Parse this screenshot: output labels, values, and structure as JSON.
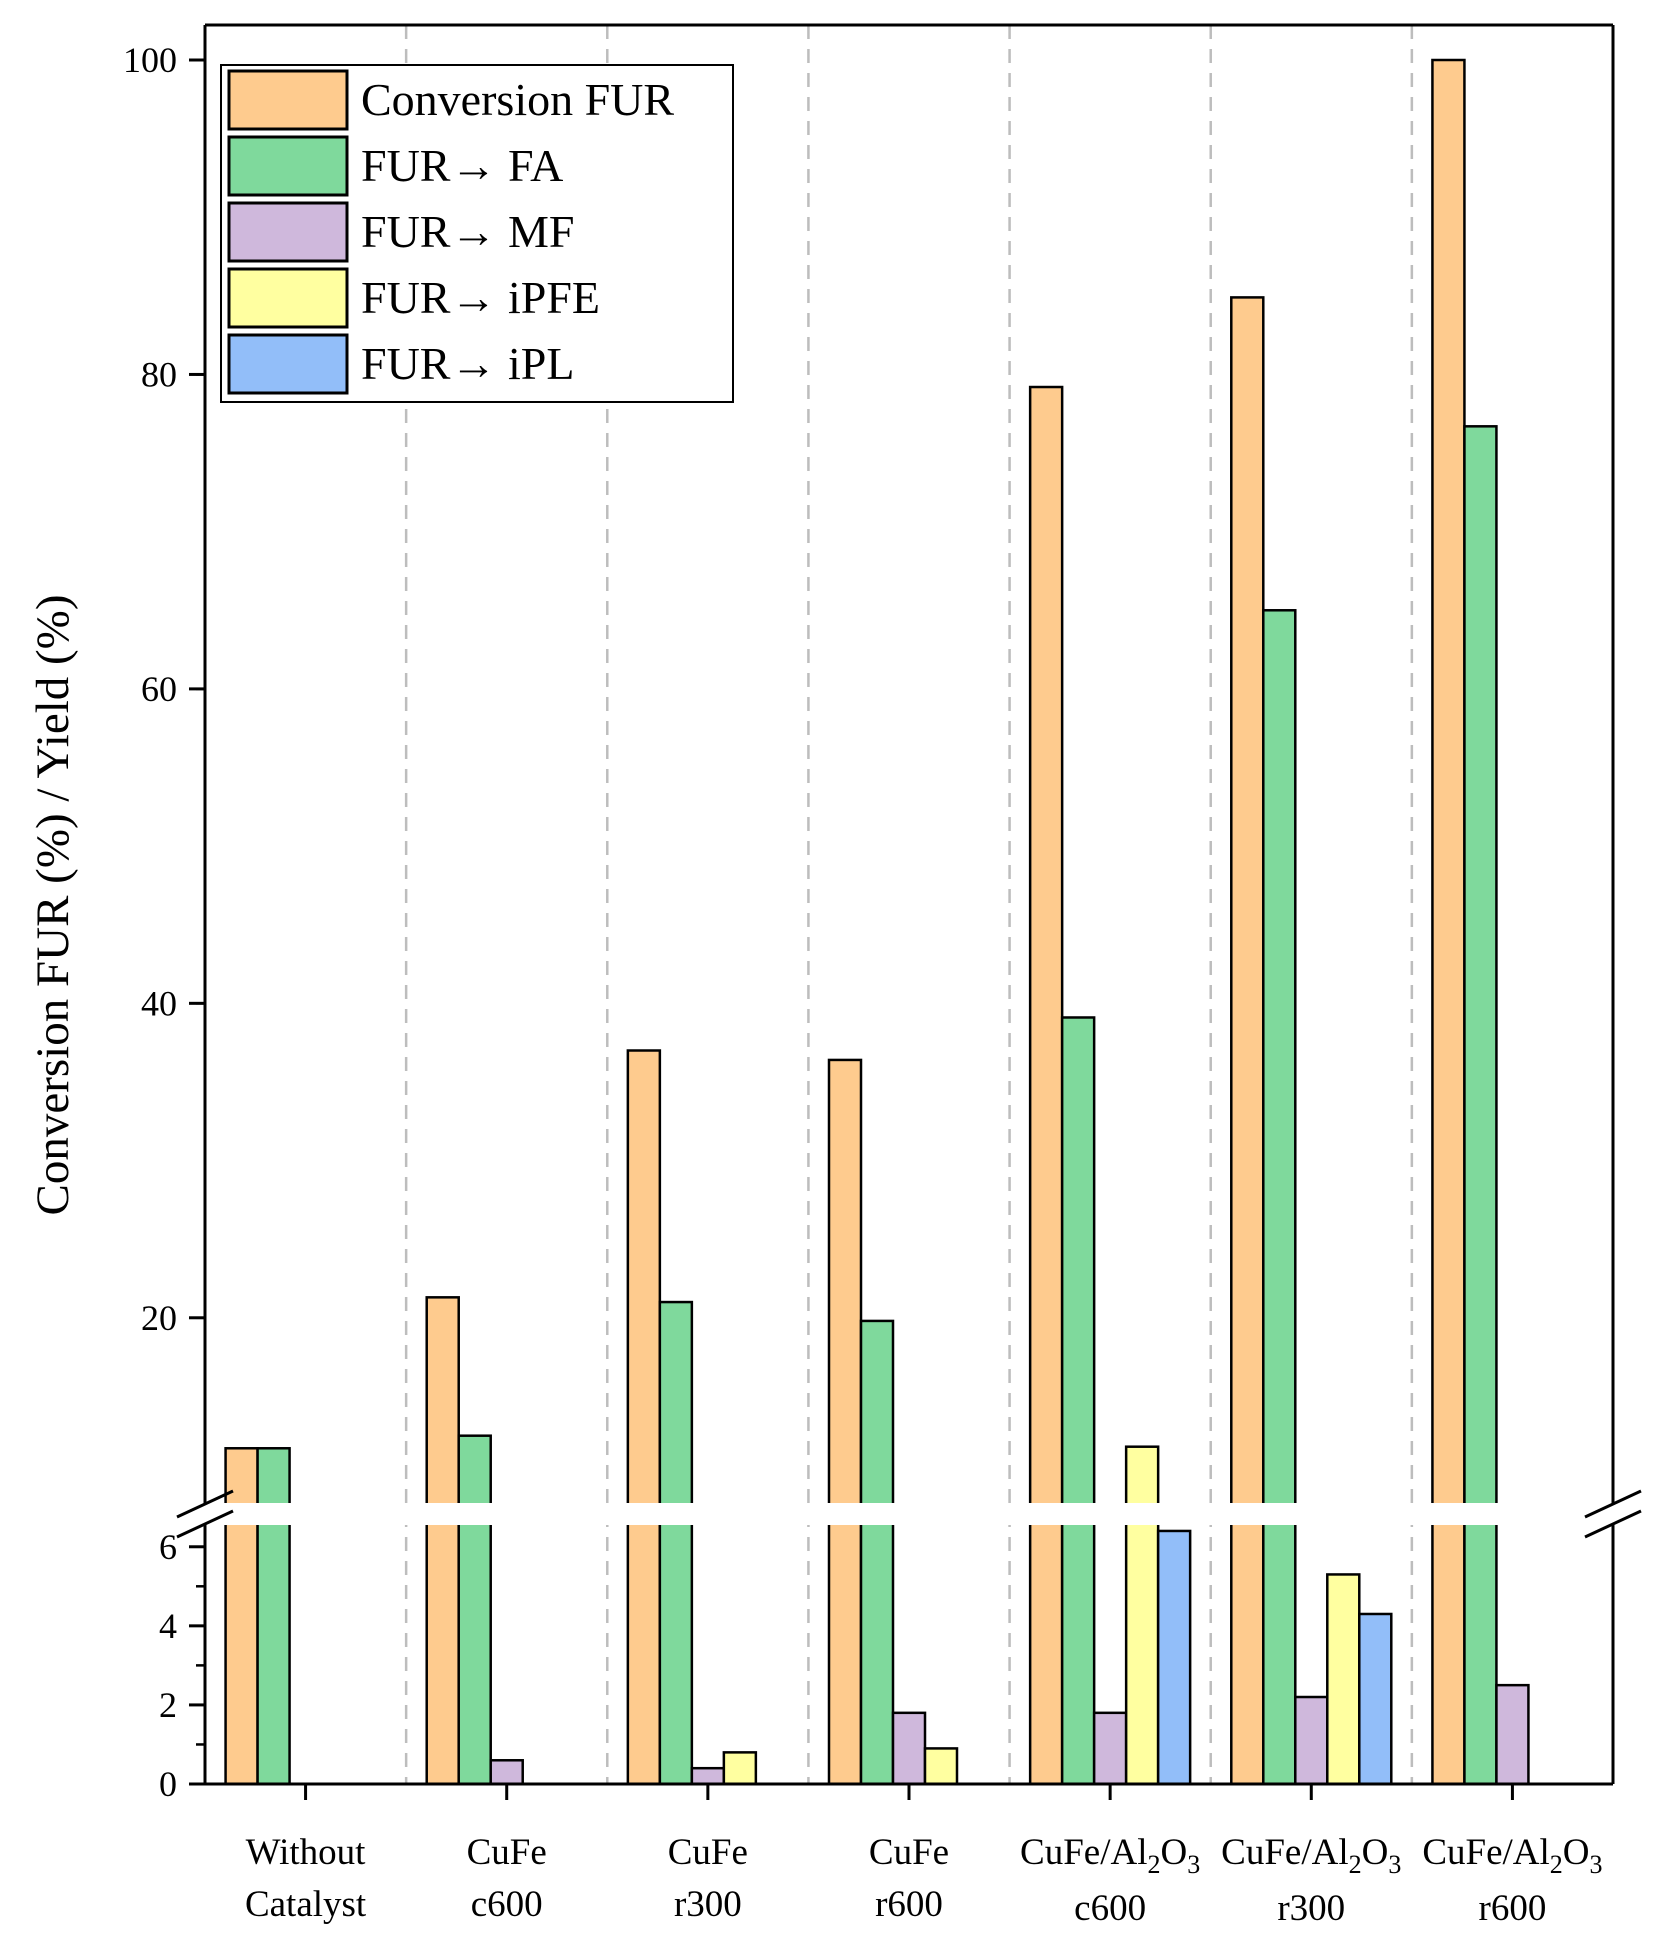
{
  "chart_data": {
    "type": "bar",
    "ylabel": "Conversion FUR (%) / Yield (%)",
    "xlabel": "",
    "categories": [
      {
        "line1": "Without",
        "line2": "Catalyst",
        "base": "",
        "sub1": "",
        "mid": "",
        "sub2": ""
      },
      {
        "line1": "CuFe",
        "line2": "c600",
        "base": "",
        "sub1": "",
        "mid": "",
        "sub2": ""
      },
      {
        "line1": "CuFe",
        "line2": "r300",
        "base": "",
        "sub1": "",
        "mid": "",
        "sub2": ""
      },
      {
        "line1": "CuFe",
        "line2": "r600",
        "base": "",
        "sub1": "",
        "mid": "",
        "sub2": ""
      },
      {
        "line1": "",
        "line2": "c600",
        "base": "CuFe/Al",
        "sub1": "2",
        "mid": "O",
        "sub2": "3"
      },
      {
        "line1": "",
        "line2": "r300",
        "base": "CuFe/Al",
        "sub1": "2",
        "mid": "O",
        "sub2": "3"
      },
      {
        "line1": "",
        "line2": "r600",
        "base": "CuFe/Al",
        "sub1": "2",
        "mid": "O",
        "sub2": "3"
      }
    ],
    "series": [
      {
        "name": "Conversion FUR",
        "color": "#FECB8E",
        "values": [
          11.7,
          21.3,
          37.0,
          36.4,
          79.2,
          84.9,
          100.0
        ]
      },
      {
        "name": "FUR→ FA",
        "color": "#7FD99C",
        "values": [
          11.7,
          12.5,
          21.0,
          19.8,
          39.1,
          65.0,
          76.7
        ]
      },
      {
        "name": "FUR→ MF",
        "color": "#CFB8DC",
        "values": [
          0,
          0.6,
          0.4,
          1.8,
          1.8,
          2.2,
          2.5
        ]
      },
      {
        "name": "FUR→ iPFE",
        "color": "#FFFFA0",
        "values": [
          0,
          0,
          0.8,
          0.9,
          11.8,
          5.3,
          0
        ]
      },
      {
        "name": "FUR→ iPL",
        "color": "#92BEF9",
        "values": [
          0,
          0,
          0,
          0,
          6.4,
          4.3,
          0
        ]
      }
    ],
    "y_axis_lower": {
      "range": [
        0,
        6.5
      ],
      "ticks": [
        "0",
        "2",
        "4",
        "6"
      ]
    },
    "y_axis_upper": {
      "range": [
        10,
        100
      ],
      "ticks": [
        "20",
        "40",
        "60",
        "80",
        "100"
      ]
    },
    "axis_break": true,
    "legend": "top-left"
  }
}
